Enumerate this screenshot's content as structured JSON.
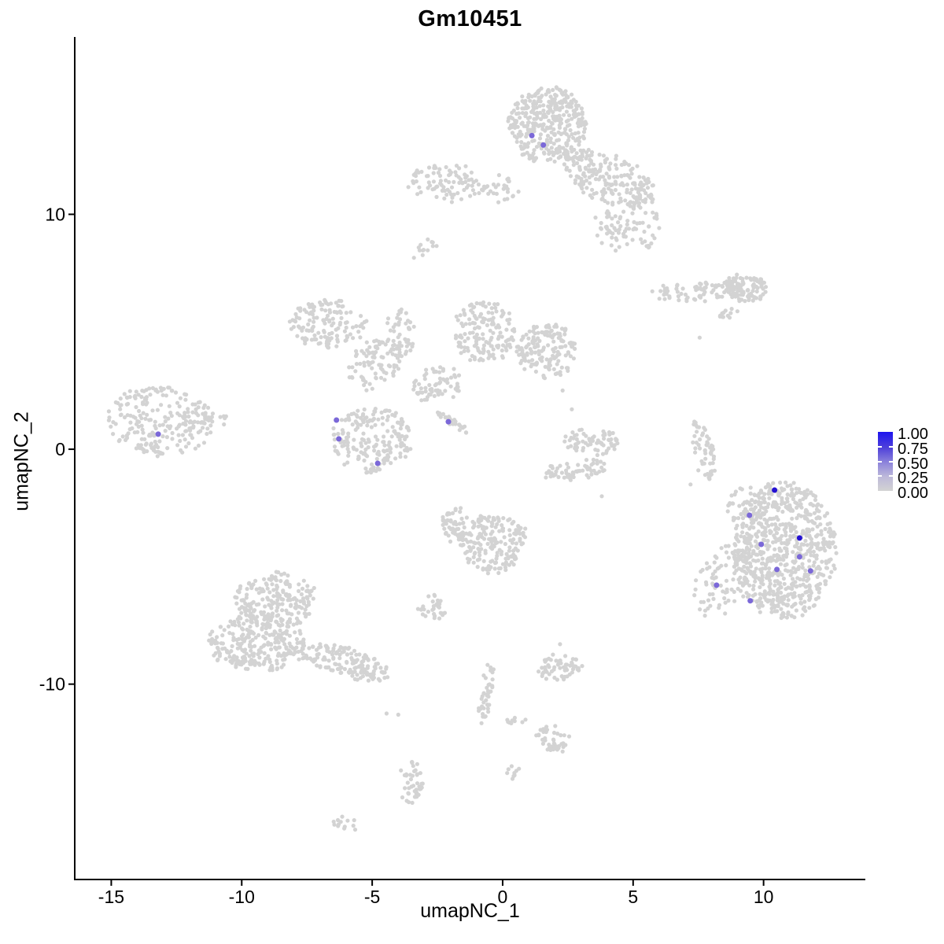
{
  "chart_data": {
    "type": "scatter",
    "title": "Gm10451",
    "xlabel": "umapNC_1",
    "ylabel": "umapNC_2",
    "xlim": [
      -16.4,
      13.9
    ],
    "ylim": [
      -18.35,
      17.55
    ],
    "grid": false,
    "legend_position": "right",
    "axes": {
      "x": {
        "tick_values": [
          -15,
          -10,
          -5,
          0,
          5,
          10
        ],
        "tick_labels": [
          "-15",
          "-10",
          "-5",
          "0",
          "5",
          "10"
        ]
      },
      "y": {
        "tick_values": [
          -10,
          0,
          10
        ],
        "tick_labels": [
          "-10",
          "0",
          "10"
        ]
      }
    },
    "colors": {
      "background_cells": "#D3D3D3",
      "mid_expression": "#7B68D8",
      "high_expression": "#2411D2",
      "axis": "#000000"
    },
    "point_radius": {
      "background": 2.6,
      "expressing": 3.5
    },
    "legend": {
      "tick_labels": [
        "1.00",
        "0.75",
        "0.50",
        "0.25",
        "0.00"
      ],
      "tick_values": [
        1.0,
        0.75,
        0.5,
        0.25,
        0.0
      ]
    },
    "background_clusters": [
      {
        "name": "top-main-blob",
        "x": 1.7,
        "y": 13.8,
        "rx": 1.5,
        "ry": 1.6,
        "rot": 0,
        "n": 380
      },
      {
        "name": "top-right-arm",
        "x": 4.1,
        "y": 11.5,
        "rx": 1.9,
        "ry": 1.0,
        "rot": -28,
        "n": 210
      },
      {
        "name": "top-lower-scatter",
        "x": 4.8,
        "y": 9.5,
        "rx": 1.3,
        "ry": 1.2,
        "rot": 0,
        "n": 85
      },
      {
        "name": "top-left-band",
        "x": -2.1,
        "y": 11.3,
        "rx": 1.55,
        "ry": 0.8,
        "rot": 0,
        "n": 90
      },
      {
        "name": "top-connector",
        "x": -0.1,
        "y": 11.1,
        "rx": 0.7,
        "ry": 0.55,
        "rot": 0,
        "n": 28
      },
      {
        "name": "tiny-streak-upperleft",
        "x": -2.95,
        "y": 8.6,
        "rx": 0.4,
        "ry": 0.28,
        "rot": 40,
        "n": 12
      },
      {
        "name": "right-band",
        "x": 7.5,
        "y": 6.7,
        "rx": 1.9,
        "ry": 0.4,
        "rot": 3,
        "n": 85
      },
      {
        "name": "right-band-blob",
        "x": 9.3,
        "y": 6.85,
        "rx": 0.85,
        "ry": 0.6,
        "rot": 0,
        "n": 95
      },
      {
        "name": "right-band-streaklet",
        "x": 8.6,
        "y": 5.75,
        "rx": 0.5,
        "ry": 0.18,
        "rot": 35,
        "n": 12
      },
      {
        "name": "midleft-blob",
        "x": -6.7,
        "y": 5.3,
        "rx": 1.45,
        "ry": 1.05,
        "rot": 0,
        "n": 135
      },
      {
        "name": "midleft-arm",
        "x": -4.9,
        "y": 3.6,
        "rx": 1.25,
        "ry": 0.95,
        "rot": 45,
        "n": 85
      },
      {
        "name": "mid-vertical-arm",
        "x": -3.9,
        "y": 4.9,
        "rx": 0.55,
        "ry": 1.05,
        "rot": 0,
        "n": 48
      },
      {
        "name": "mid-path",
        "x": -2.5,
        "y": 2.8,
        "rx": 0.95,
        "ry": 0.75,
        "rot": 20,
        "n": 65
      },
      {
        "name": "mid-top-cluster",
        "x": -0.7,
        "y": 5.0,
        "rx": 1.15,
        "ry": 1.35,
        "rot": 0,
        "n": 150
      },
      {
        "name": "mid-right-cluster",
        "x": 1.7,
        "y": 4.2,
        "rx": 1.15,
        "ry": 1.15,
        "rot": 0,
        "n": 160
      },
      {
        "name": "diagonal-streak",
        "x": -2.0,
        "y": 1.2,
        "rx": 0.85,
        "ry": 0.13,
        "rot": -37,
        "n": 34
      },
      {
        "name": "mid-lower-blob",
        "x": -5.0,
        "y": 0.4,
        "rx": 1.55,
        "ry": 1.45,
        "rot": 0,
        "n": 195
      },
      {
        "name": "left-cluster",
        "x": -13.1,
        "y": 1.2,
        "rx": 2.05,
        "ry": 1.45,
        "rot": -8,
        "n": 225
      },
      {
        "name": "left-cluster-arm",
        "x": -11.1,
        "y": 1.25,
        "rx": 0.7,
        "ry": 0.3,
        "rot": 5,
        "n": 18
      },
      {
        "name": "arc-bottom",
        "x": 2.8,
        "y": -0.9,
        "rx": 1.3,
        "ry": 0.38,
        "rot": 8,
        "n": 65
      },
      {
        "name": "arc-right-upper",
        "x": 3.9,
        "y": 0.25,
        "rx": 0.5,
        "ry": 0.55,
        "rot": 0,
        "n": 38
      },
      {
        "name": "arc-mid-upper",
        "x": 2.95,
        "y": 0.35,
        "rx": 0.55,
        "ry": 0.45,
        "rot": 0,
        "n": 30
      },
      {
        "name": "right-vertical-streak",
        "x": 7.75,
        "y": 0.0,
        "rx": 0.38,
        "ry": 1.45,
        "rot": 10,
        "n": 55
      },
      {
        "name": "right-big-main",
        "x": 10.8,
        "y": -4.3,
        "rx": 1.95,
        "ry": 2.95,
        "rot": 0,
        "n": 720
      },
      {
        "name": "right-big-tail",
        "x": 8.4,
        "y": -5.6,
        "rx": 0.95,
        "ry": 1.65,
        "rot": -20,
        "n": 85
      },
      {
        "name": "right-big-topleft",
        "x": 9.3,
        "y": -2.4,
        "rx": 0.75,
        "ry": 0.8,
        "rot": 0,
        "n": 55
      },
      {
        "name": "center-cluster",
        "x": -0.35,
        "y": -3.95,
        "rx": 1.3,
        "ry": 1.3,
        "rot": 0,
        "n": 185
      },
      {
        "name": "center-cluster-left",
        "x": -1.8,
        "y": -3.2,
        "rx": 0.55,
        "ry": 0.75,
        "rot": 0,
        "n": 55
      },
      {
        "name": "small-mid-blob",
        "x": -2.7,
        "y": -6.8,
        "rx": 0.5,
        "ry": 0.55,
        "rot": 0,
        "n": 35
      },
      {
        "name": "bottomleft-top",
        "x": -8.7,
        "y": -6.4,
        "rx": 1.6,
        "ry": 1.15,
        "rot": 0,
        "n": 210
      },
      {
        "name": "bottomleft-bottom",
        "x": -9.4,
        "y": -8.3,
        "rx": 1.95,
        "ry": 1.2,
        "rot": -5,
        "n": 265
      },
      {
        "name": "bottomleft-tail",
        "x": -6.0,
        "y": -9.1,
        "rx": 1.8,
        "ry": 0.6,
        "rot": -17,
        "n": 155
      },
      {
        "name": "bottom-chain-vertical",
        "x": -0.65,
        "y": -10.4,
        "rx": 0.2,
        "ry": 1.4,
        "rot": -8,
        "n": 40
      },
      {
        "name": "bottom-chain-horiz",
        "x": 0.55,
        "y": -11.55,
        "rx": 0.45,
        "ry": 0.12,
        "rot": 0,
        "n": 9
      },
      {
        "name": "bottom-right-small",
        "x": 2.2,
        "y": -9.3,
        "rx": 0.9,
        "ry": 0.55,
        "rot": 0,
        "n": 60
      },
      {
        "name": "bottom-blob2",
        "x": 1.9,
        "y": -12.3,
        "rx": 0.7,
        "ry": 0.5,
        "rot": -25,
        "n": 42
      },
      {
        "name": "bottom-streaklet",
        "x": 0.35,
        "y": -13.8,
        "rx": 0.25,
        "ry": 0.3,
        "rot": -45,
        "n": 9
      },
      {
        "name": "bottomleft-vstreak",
        "x": -3.5,
        "y": -14.2,
        "rx": 0.45,
        "ry": 0.95,
        "rot": 0,
        "n": 45
      },
      {
        "name": "bottomleft-tiny",
        "x": -6.0,
        "y": -16.0,
        "rx": 0.55,
        "ry": 0.28,
        "rot": -20,
        "n": 13
      }
    ],
    "background_singles": [
      [
        2.3,
        2.5
      ],
      [
        2.65,
        1.7
      ],
      [
        3.8,
        -2.0
      ],
      [
        7.55,
        4.75
      ],
      [
        2.2,
        -8.3
      ],
      [
        -4.45,
        -11.25
      ],
      [
        -4.0,
        -11.3
      ],
      [
        7.5,
        -0.9
      ],
      [
        7.9,
        -1.2
      ],
      [
        7.2,
        -1.5
      ],
      [
        -3.4,
        8.15
      ]
    ],
    "expressing_cells": [
      {
        "x": 1.12,
        "y": 13.35,
        "value": 0.5
      },
      {
        "x": 1.56,
        "y": 12.95,
        "value": 0.5
      },
      {
        "x": -13.2,
        "y": 0.64,
        "value": 0.5
      },
      {
        "x": -6.37,
        "y": 1.24,
        "value": 0.5
      },
      {
        "x": -6.28,
        "y": 0.44,
        "value": 0.5
      },
      {
        "x": -4.79,
        "y": -0.6,
        "value": 0.5
      },
      {
        "x": -2.08,
        "y": 1.17,
        "value": 0.5
      },
      {
        "x": 10.42,
        "y": -1.74,
        "value": 1.0
      },
      {
        "x": 9.46,
        "y": -2.81,
        "value": 0.5
      },
      {
        "x": 11.38,
        "y": -3.78,
        "value": 1.0
      },
      {
        "x": 9.91,
        "y": -4.05,
        "value": 0.5
      },
      {
        "x": 11.38,
        "y": -4.58,
        "value": 0.5
      },
      {
        "x": 10.51,
        "y": -5.12,
        "value": 0.5
      },
      {
        "x": 11.8,
        "y": -5.18,
        "value": 0.5
      },
      {
        "x": 8.2,
        "y": -5.79,
        "value": 0.5
      },
      {
        "x": 9.49,
        "y": -6.45,
        "value": 0.5
      }
    ]
  }
}
